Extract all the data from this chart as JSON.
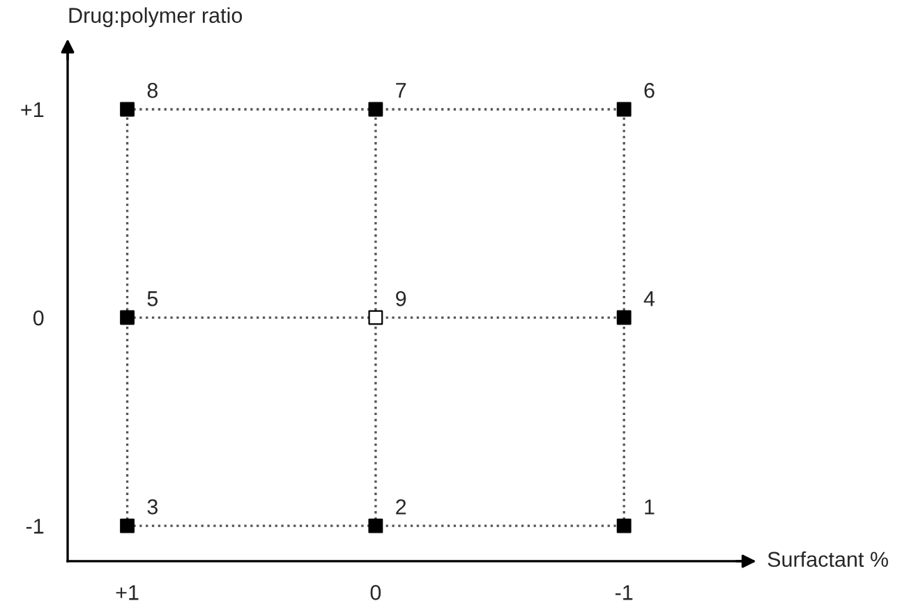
{
  "chart_data": {
    "type": "scatter",
    "xlabel": "Surfactant %",
    "ylabel": "Drug:polymer ratio",
    "xlim": [
      1.24,
      -1.52
    ],
    "ylim": [
      -1.17,
      1.32
    ],
    "xticks": [
      {
        "value": 1,
        "label": "+1"
      },
      0,
      -1
    ],
    "yticks": [
      -1,
      0,
      {
        "value": 1,
        "label": "+1"
      }
    ],
    "grid": false,
    "legend": false,
    "series": [
      {
        "type": "line",
        "line_style": "dotted",
        "color": "#555555",
        "x": [
          1,
          0,
          -1
        ],
        "values": [
          1,
          1,
          1
        ]
      },
      {
        "type": "line",
        "line_style": "dotted",
        "color": "#555555",
        "x": [
          1,
          0,
          -1
        ],
        "values": [
          0,
          0,
          0
        ]
      },
      {
        "type": "line",
        "line_style": "dotted",
        "color": "#555555",
        "x": [
          1,
          0,
          -1
        ],
        "values": [
          -1,
          -1,
          -1
        ]
      },
      {
        "type": "line",
        "line_style": "dotted",
        "color": "#555555",
        "x": [
          1,
          1,
          1
        ],
        "values": [
          -1,
          0,
          1
        ]
      },
      {
        "type": "line",
        "line_style": "dotted",
        "color": "#555555",
        "x": [
          0,
          0,
          0
        ],
        "values": [
          -1,
          0,
          1
        ]
      },
      {
        "type": "line",
        "line_style": "dotted",
        "color": "#555555",
        "x": [
          -1,
          -1,
          -1
        ],
        "values": [
          -1,
          0,
          1
        ]
      },
      {
        "marker": "square",
        "x": [
          -1,
          0,
          1,
          -1,
          1,
          -1,
          0,
          1,
          0
        ],
        "values": [
          -1,
          -1,
          -1,
          0,
          0,
          1,
          1,
          1,
          0
        ],
        "colors": [
          "#000000",
          "#000000",
          "#000000",
          "#000000",
          "#000000",
          "#000000",
          "#000000",
          "#000000",
          "#ffffff"
        ]
      }
    ],
    "annotations": [
      {
        "text": "1",
        "x": -1,
        "y": -1
      },
      {
        "text": "2",
        "x": 0,
        "y": -1
      },
      {
        "text": "3",
        "x": 1,
        "y": -1
      },
      {
        "text": "4",
        "x": -1,
        "y": 0
      },
      {
        "text": "5",
        "x": 1,
        "y": 0
      },
      {
        "text": "6",
        "x": -1,
        "y": 1
      },
      {
        "text": "7",
        "x": 0,
        "y": 1
      },
      {
        "text": "8",
        "x": 1,
        "y": 1
      },
      {
        "text": "9",
        "x": 0,
        "y": 0
      }
    ]
  }
}
